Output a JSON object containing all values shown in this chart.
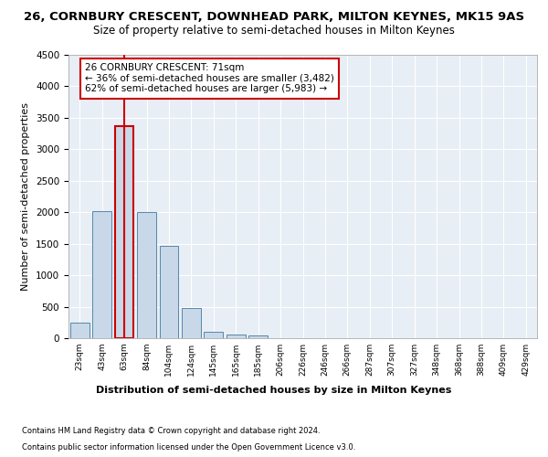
{
  "title1": "26, CORNBURY CRESCENT, DOWNHEAD PARK, MILTON KEYNES, MK15 9AS",
  "title2": "Size of property relative to semi-detached houses in Milton Keynes",
  "xlabel": "Distribution of semi-detached houses by size in Milton Keynes",
  "ylabel": "Number of semi-detached properties",
  "footnote1": "Contains HM Land Registry data © Crown copyright and database right 2024.",
  "footnote2": "Contains public sector information licensed under the Open Government Licence v3.0.",
  "categories": [
    "23sqm",
    "43sqm",
    "63sqm",
    "84sqm",
    "104sqm",
    "124sqm",
    "145sqm",
    "165sqm",
    "185sqm",
    "206sqm",
    "226sqm",
    "246sqm",
    "266sqm",
    "287sqm",
    "307sqm",
    "327sqm",
    "348sqm",
    "368sqm",
    "388sqm",
    "409sqm",
    "429sqm"
  ],
  "values": [
    250,
    2025,
    3375,
    2010,
    1460,
    475,
    105,
    55,
    45,
    0,
    0,
    0,
    0,
    0,
    0,
    0,
    0,
    0,
    0,
    0,
    0
  ],
  "bar_color": "#c8d8e8",
  "bar_edge_color": "#5588aa",
  "highlight_bar_index": 2,
  "highlight_bar_edge_color": "#cc0000",
  "vline_color": "#cc0000",
  "ylim": [
    0,
    4500
  ],
  "yticks": [
    0,
    500,
    1000,
    1500,
    2000,
    2500,
    3000,
    3500,
    4000,
    4500
  ],
  "annotation_box_text": "26 CORNBURY CRESCENT: 71sqm\n← 36% of semi-detached houses are smaller (3,482)\n62% of semi-detached houses are larger (5,983) →",
  "background_color": "#e8eef5",
  "grid_color": "#ffffff",
  "title1_fontsize": 9.5,
  "title2_fontsize": 8.5,
  "xlabel_fontsize": 8,
  "ylabel_fontsize": 8,
  "annotation_fontsize": 7.5,
  "footnote_fontsize": 6
}
